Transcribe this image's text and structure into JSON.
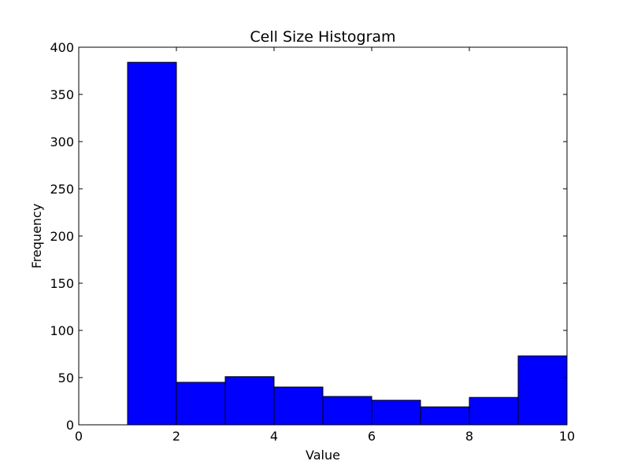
{
  "chart_data": {
    "type": "bar",
    "subtype": "histogram",
    "title": "Cell Size Histogram",
    "xlabel": "Value",
    "ylabel": "Frequency",
    "xlim": [
      0,
      10
    ],
    "ylim": [
      0,
      400
    ],
    "xticks": [
      0,
      2,
      4,
      6,
      8,
      10
    ],
    "yticks": [
      0,
      50,
      100,
      150,
      200,
      250,
      300,
      350,
      400
    ],
    "grid": false,
    "bins": [
      {
        "x0": 0,
        "x1": 1,
        "value": 0
      },
      {
        "x0": 1,
        "x1": 2,
        "value": 384
      },
      {
        "x0": 2,
        "x1": 3,
        "value": 45
      },
      {
        "x0": 3,
        "x1": 4,
        "value": 51
      },
      {
        "x0": 4,
        "x1": 5,
        "value": 40
      },
      {
        "x0": 5,
        "x1": 6,
        "value": 30
      },
      {
        "x0": 6,
        "x1": 7,
        "value": 26
      },
      {
        "x0": 7,
        "x1": 8,
        "value": 19
      },
      {
        "x0": 8,
        "x1": 9,
        "value": 29
      },
      {
        "x0": 9,
        "x1": 10,
        "value": 73
      }
    ],
    "colors": {
      "bar_fill": "#0000ff",
      "bar_edge": "#000000",
      "axes": "#000000",
      "background": "#ffffff"
    }
  }
}
